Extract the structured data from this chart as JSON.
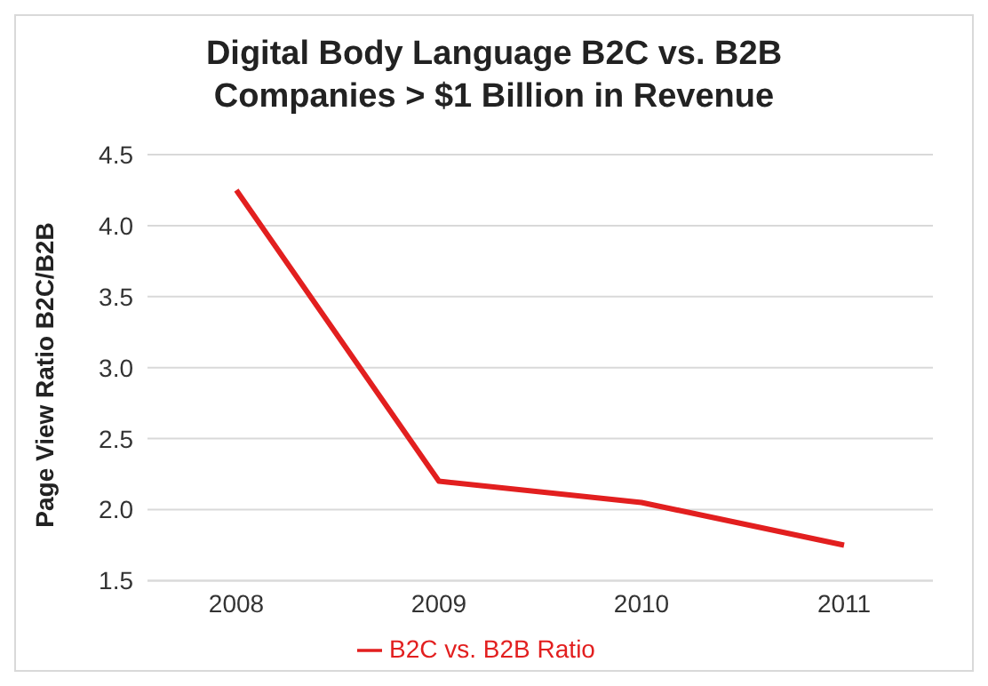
{
  "chart_data": {
    "type": "line",
    "title": "Digital Body Language B2C vs. B2B\nCompanies > $1 Billion in Revenue",
    "ylabel": "Page View Ratio B2C/B2B",
    "categories": [
      "2008",
      "2009",
      "2010",
      "2011"
    ],
    "series": [
      {
        "name": "B2C vs. B2B Ratio",
        "color": "#e21f1f",
        "values": [
          4.25,
          2.2,
          2.05,
          1.75
        ]
      }
    ],
    "ylim": [
      1.5,
      4.5
    ],
    "yticks": [
      1.5,
      {
        "value": 2,
        "label": "2.0"
      },
      2.5,
      {
        "value": 3,
        "label": "3.0"
      },
      3.5,
      {
        "value": 4,
        "label": "4.0"
      },
      4.5
    ],
    "grid": "y",
    "legend": "bottom",
    "marker": "none",
    "line_style": "solid"
  }
}
